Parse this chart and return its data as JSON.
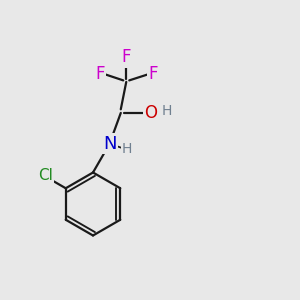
{
  "background_color": "#e8e8e8",
  "bond_color": "#1a1a1a",
  "F_color": "#cc00cc",
  "O_color": "#cc0000",
  "N_color": "#0000cc",
  "Cl_color": "#228b22",
  "H_color": "#708090",
  "figsize": [
    3.0,
    3.0
  ],
  "dpi": 100,
  "xlim": [
    0,
    10
  ],
  "ylim": [
    0,
    10
  ]
}
